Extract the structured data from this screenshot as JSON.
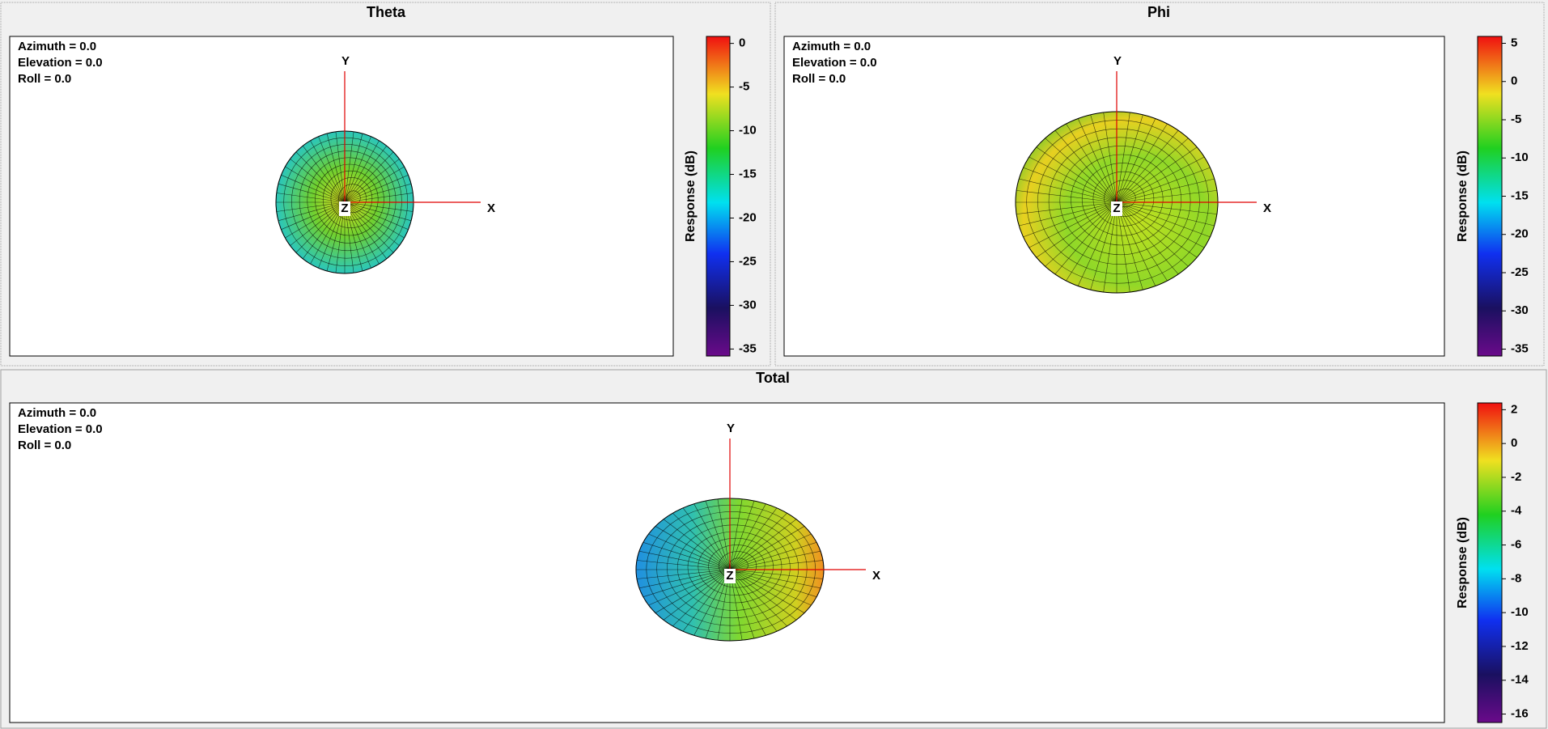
{
  "panels": [
    {
      "title": "Theta",
      "view": [
        "Azimuth = 0.0",
        "Elevation = 0.0",
        "Roll = 0.0"
      ],
      "axes": {
        "x": "X",
        "y": "Y",
        "z": "Z"
      },
      "colorbar": {
        "label": "Response (dB)",
        "range": [
          0.8,
          -35.8
        ],
        "ticks": [
          0,
          -5,
          -10,
          -15,
          -20,
          -25,
          -30,
          -35
        ]
      }
    },
    {
      "title": "Phi",
      "view": [
        "Azimuth = 0.0",
        "Elevation = 0.0",
        "Roll = 0.0"
      ],
      "axes": {
        "x": "X",
        "y": "Y",
        "z": "Z"
      },
      "colorbar": {
        "label": "Response (dB)",
        "range": [
          5.9,
          -35.9
        ],
        "ticks": [
          5,
          0,
          -5,
          -10,
          -15,
          -20,
          -25,
          -30,
          -35
        ]
      }
    },
    {
      "title": "Total",
      "view": [
        "Azimuth = 0.0",
        "Elevation = 0.0",
        "Roll = 0.0"
      ],
      "axes": {
        "x": "X",
        "y": "Y",
        "z": "Z"
      },
      "colorbar": {
        "label": "Response (dB)",
        "range": [
          2.4,
          -16.5
        ],
        "ticks": [
          2,
          0,
          -2,
          -4,
          -6,
          -8,
          -10,
          -12,
          -14,
          -16
        ]
      }
    }
  ]
}
